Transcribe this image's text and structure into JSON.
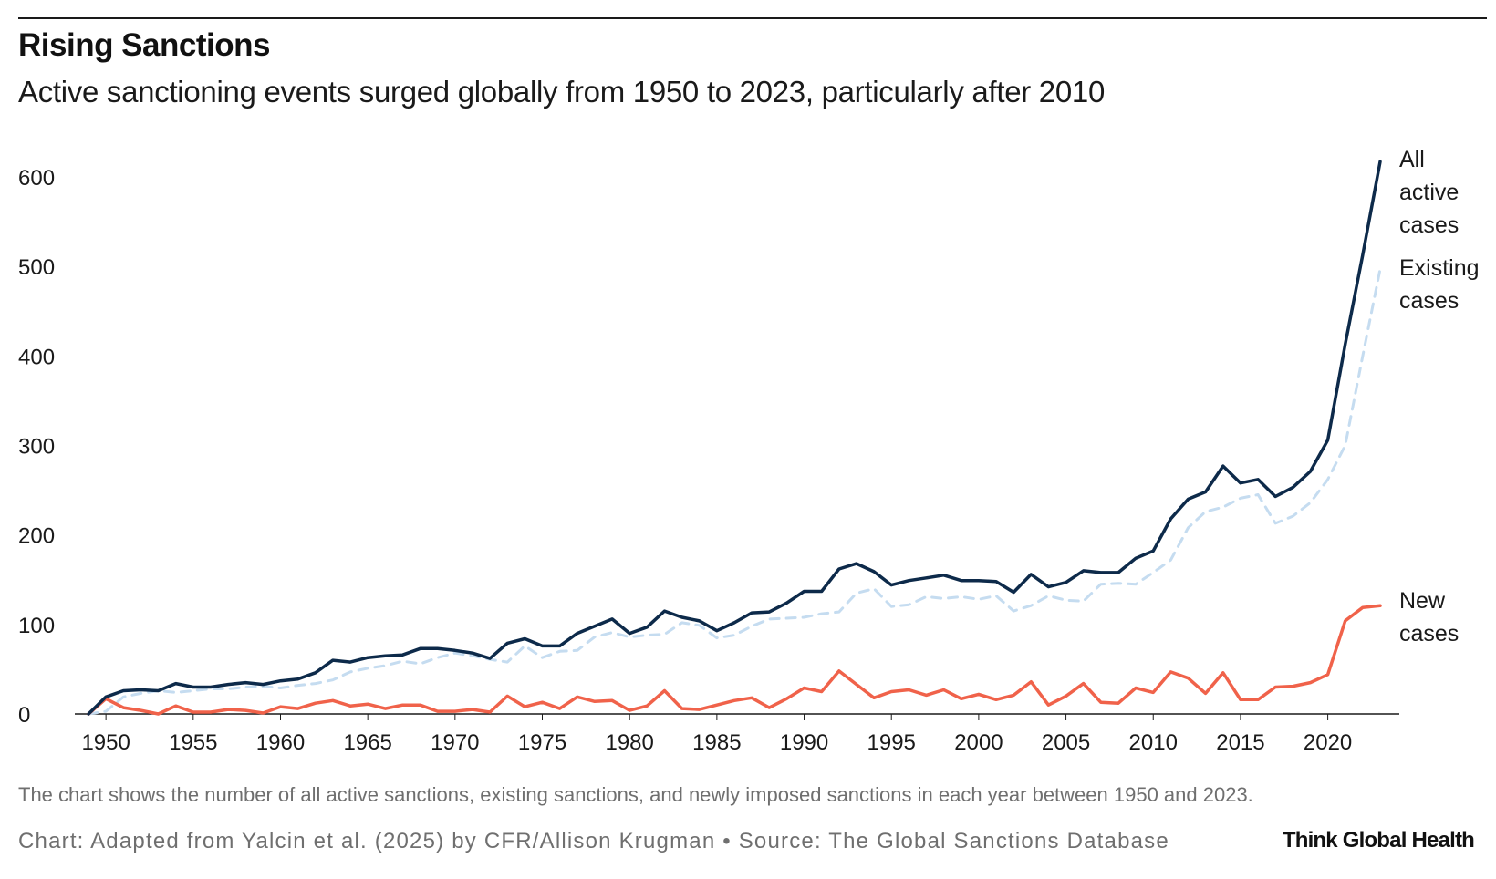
{
  "header": {
    "title": "Rising Sanctions",
    "subtitle": "Active sanctioning events surged globally from 1950 to 2023, particularly after 2010"
  },
  "footer": {
    "note": "The chart shows the number of all active sanctions, existing sanctions, and newly imposed sanctions in each year between 1950 and 2023.",
    "source": "Chart: Adapted from Yalcin et al. (2025) by CFR/Allison Krugman • Source: The Global Sanctions Database",
    "brand": "Think Global Health"
  },
  "chart_data": {
    "type": "line",
    "title": "Rising Sanctions",
    "xlabel": "",
    "ylabel": "",
    "xlim": [
      1949,
      2023
    ],
    "ylim": [
      0,
      600
    ],
    "grid": false,
    "x_ticks": [
      1950,
      1955,
      1960,
      1965,
      1970,
      1975,
      1980,
      1985,
      1990,
      1995,
      2000,
      2005,
      2010,
      2015,
      2020
    ],
    "y_ticks": [
      0,
      100,
      200,
      300,
      400,
      500,
      600
    ],
    "x": [
      1949,
      1950,
      1951,
      1952,
      1953,
      1954,
      1955,
      1956,
      1957,
      1958,
      1959,
      1960,
      1961,
      1962,
      1963,
      1964,
      1965,
      1966,
      1967,
      1968,
      1969,
      1970,
      1971,
      1972,
      1973,
      1974,
      1975,
      1976,
      1977,
      1978,
      1979,
      1980,
      1981,
      1982,
      1983,
      1984,
      1985,
      1986,
      1987,
      1988,
      1989,
      1990,
      1991,
      1992,
      1993,
      1994,
      1995,
      1996,
      1997,
      1998,
      1999,
      2000,
      2001,
      2002,
      2003,
      2004,
      2005,
      2006,
      2007,
      2008,
      2009,
      2010,
      2011,
      2012,
      2013,
      2014,
      2015,
      2016,
      2017,
      2018,
      2019,
      2020,
      2021,
      2022,
      2023
    ],
    "series": [
      {
        "name": "All active cases",
        "label_lines": [
          "All",
          "active",
          "cases"
        ],
        "color": "#0d2a4a",
        "style": "solid",
        "values": [
          0,
          19,
          26,
          27,
          26,
          34,
          30,
          30,
          33,
          35,
          33,
          37,
          39,
          46,
          60,
          58,
          63,
          65,
          66,
          73,
          73,
          71,
          68,
          62,
          79,
          84,
          76,
          76,
          90,
          98,
          106,
          90,
          97,
          115,
          108,
          104,
          93,
          102,
          113,
          114,
          124,
          137,
          137,
          162,
          168,
          159,
          144,
          149,
          152,
          155,
          149,
          149,
          148,
          136,
          156,
          142,
          147,
          160,
          158,
          158,
          174,
          182,
          218,
          240,
          248,
          277,
          258,
          262,
          243,
          253,
          271,
          306,
          413,
          513,
          617
        ]
      },
      {
        "name": "Existing cases",
        "label_lines": [
          "Existing",
          "cases"
        ],
        "color": "#c5dcf0",
        "style": "dashed",
        "values": [
          0,
          3,
          19,
          23,
          26,
          24,
          26,
          28,
          28,
          30,
          31,
          29,
          32,
          34,
          38,
          47,
          51,
          54,
          59,
          56,
          63,
          68,
          65,
          61,
          58,
          76,
          63,
          70,
          71,
          86,
          91,
          86,
          88,
          89,
          102,
          99,
          85,
          88,
          98,
          106,
          107,
          108,
          112,
          114,
          135,
          140,
          120,
          122,
          131,
          129,
          131,
          128,
          132,
          115,
          121,
          132,
          127,
          126,
          145,
          146,
          145,
          158,
          172,
          208,
          226,
          231,
          241,
          245,
          213,
          221,
          236,
          262,
          300,
          400,
          497
        ]
      },
      {
        "name": "New cases",
        "label_lines": [
          "New",
          "cases"
        ],
        "color": "#f0624a",
        "style": "solid",
        "values": [
          0,
          17,
          7,
          4,
          0,
          9,
          2,
          2,
          5,
          4,
          1,
          8,
          6,
          12,
          15,
          9,
          11,
          6,
          10,
          10,
          3,
          3,
          5,
          2,
          20,
          8,
          13,
          6,
          19,
          14,
          15,
          4,
          9,
          26,
          6,
          5,
          10,
          15,
          18,
          7,
          17,
          29,
          25,
          48,
          33,
          18,
          25,
          27,
          21,
          27,
          17,
          22,
          16,
          21,
          36,
          10,
          20,
          34,
          13,
          12,
          29,
          24,
          47,
          40,
          23,
          46,
          16,
          16,
          30,
          31,
          35,
          44,
          104,
          119,
          121
        ]
      }
    ]
  }
}
